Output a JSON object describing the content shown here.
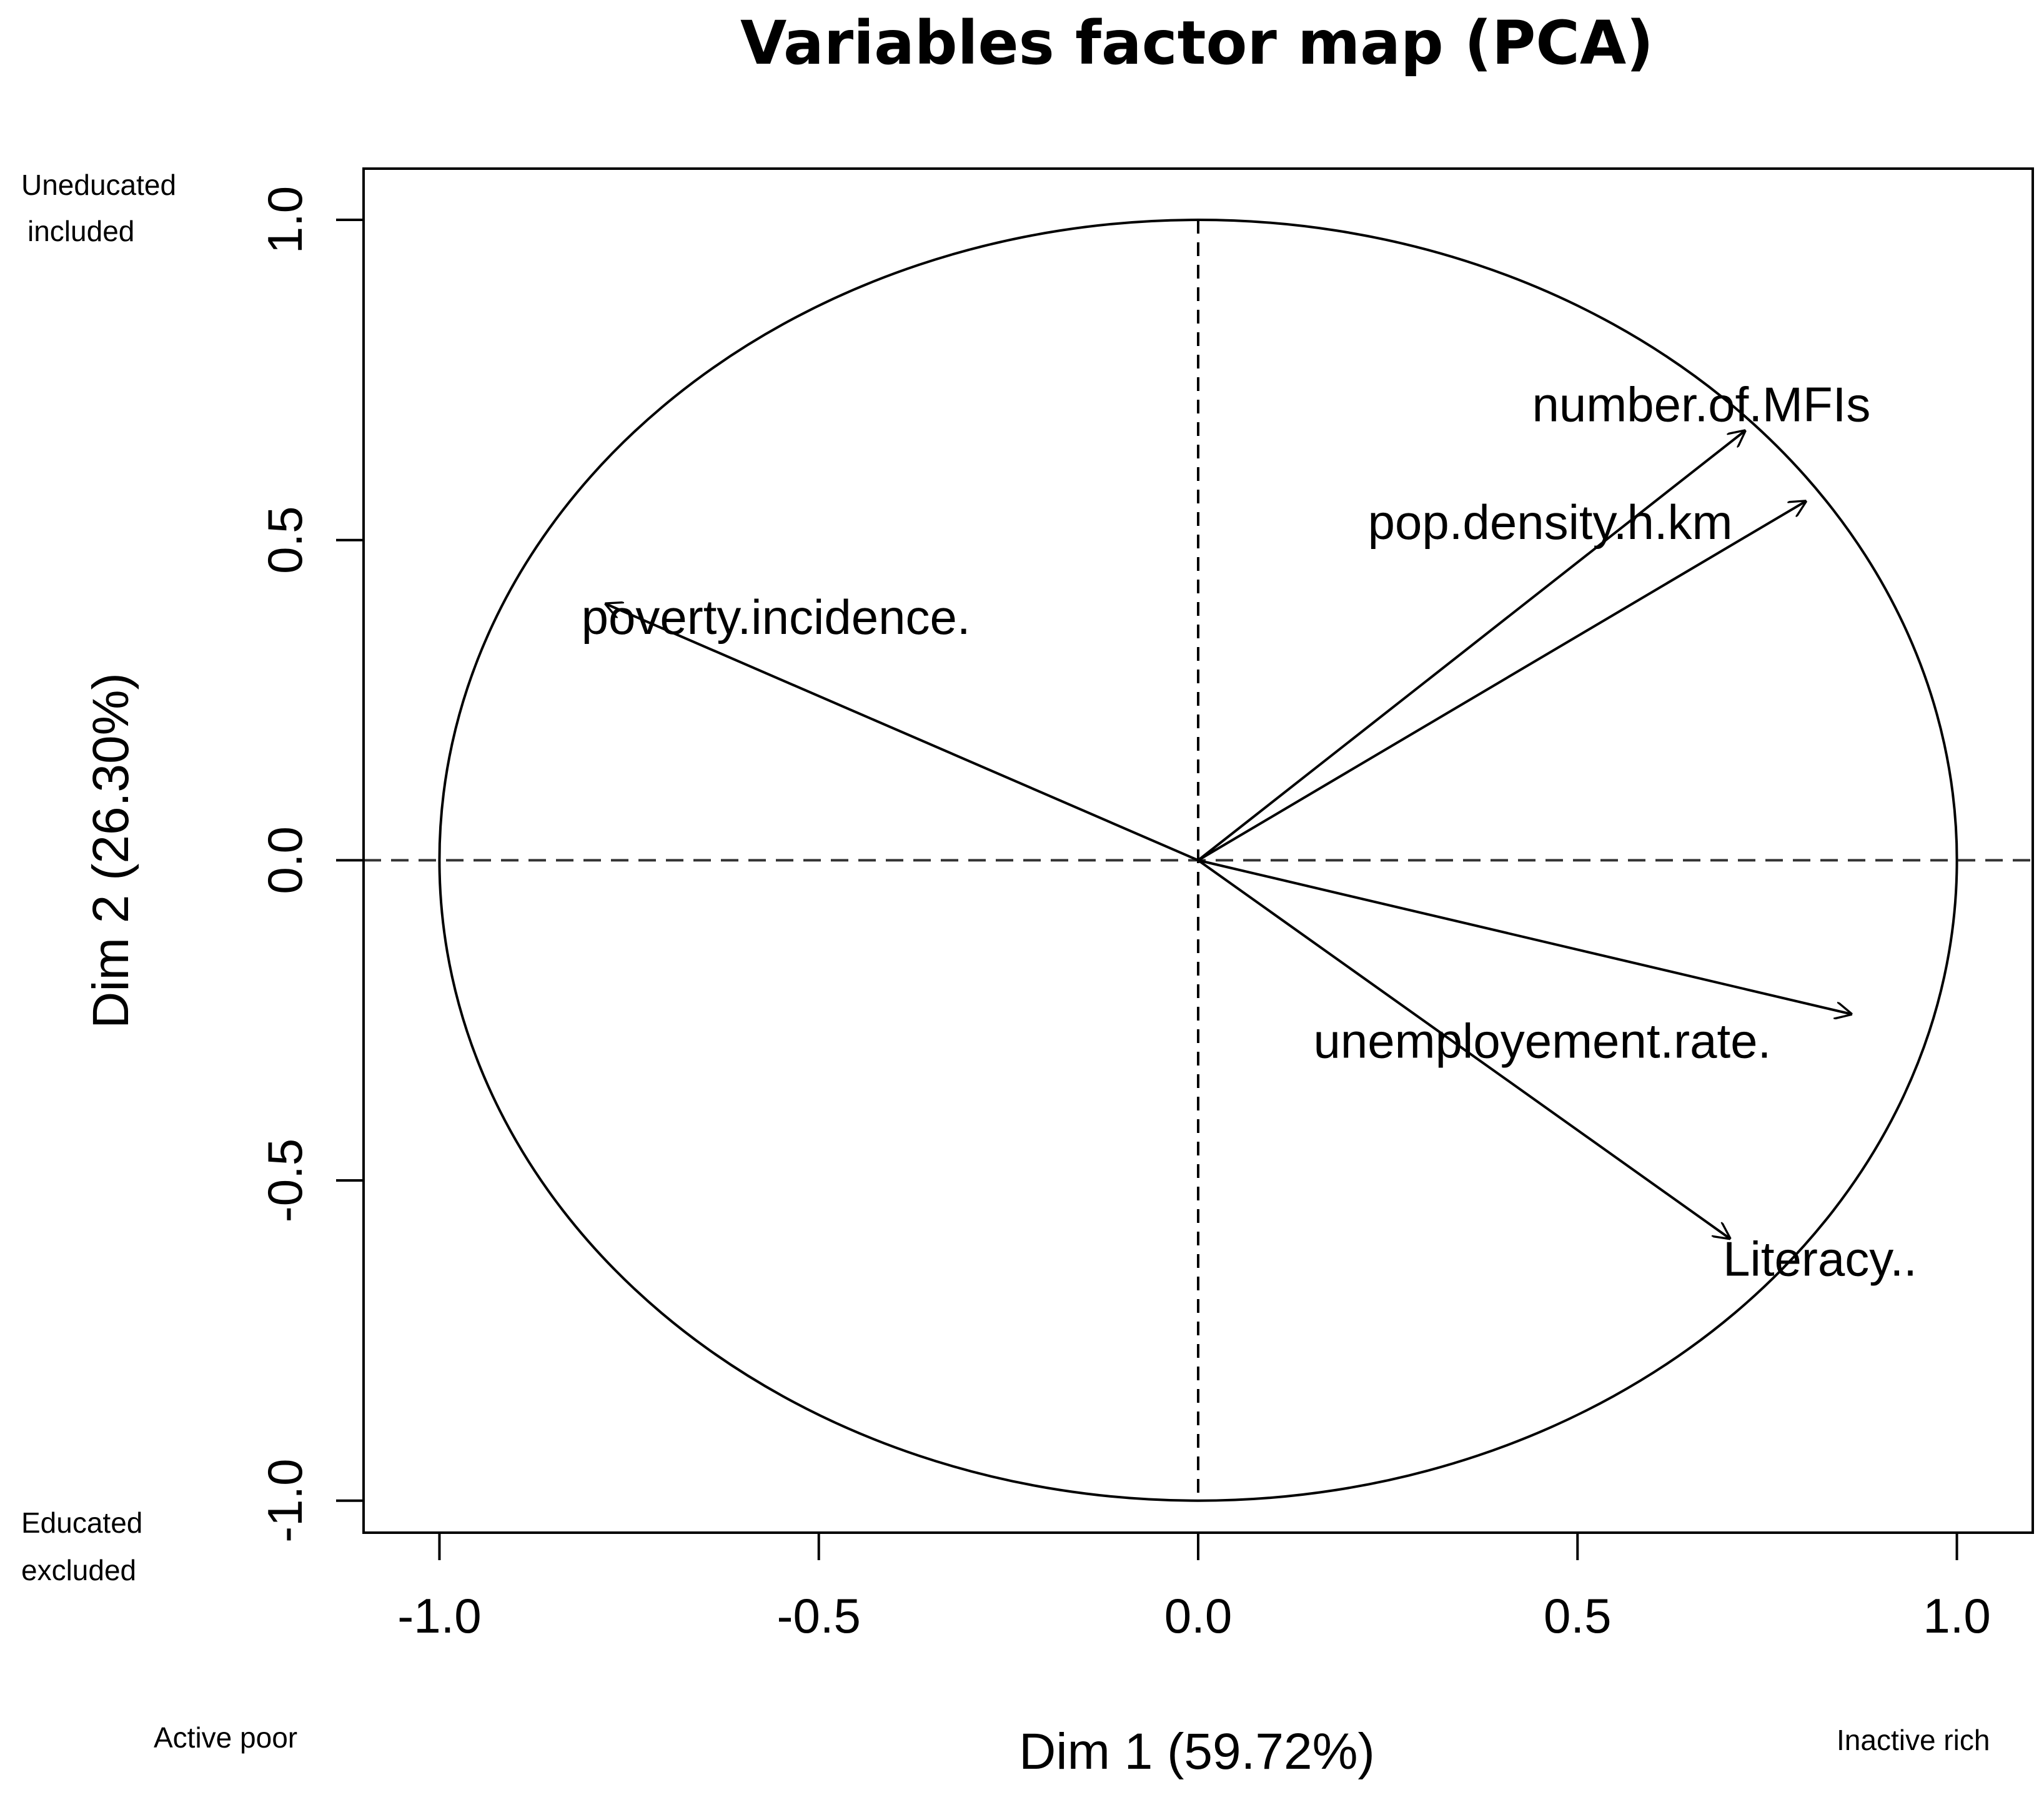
{
  "chart_data": {
    "type": "scatter",
    "title": "Variables factor map (PCA)",
    "xlabel": "Dim 1 (59.72%)",
    "ylabel": "Dim 2 (26.30%)",
    "xlim": [
      -1.1,
      1.1
    ],
    "ylim": [
      -1.05,
      1.08
    ],
    "xticks": [
      -1.0,
      -0.5,
      0.0,
      0.5,
      1.0
    ],
    "yticks": [
      -1.0,
      -0.5,
      0.0,
      0.5,
      1.0
    ],
    "xtick_labels": [
      "-1.0",
      "-0.5",
      "0.0",
      "0.5",
      "1.0"
    ],
    "ytick_labels": [
      "-1.0",
      "-0.5",
      "0.0",
      "0.5",
      "1.0"
    ],
    "unit_circle": true,
    "reference_lines": {
      "x": 0,
      "y": 0,
      "style": "dashed"
    },
    "variables": [
      {
        "name": "number.of.MFIs",
        "x": 0.72,
        "y": 0.67
      },
      {
        "name": "pop.density.h.km",
        "x": 0.8,
        "y": 0.56
      },
      {
        "name": "poverty.incidence.",
        "x": -0.78,
        "y": 0.4
      },
      {
        "name": "unemployement.rate.",
        "x": 0.86,
        "y": -0.24
      },
      {
        "name": "Literacy..",
        "x": 0.7,
        "y": -0.59
      }
    ],
    "annotations": {
      "top_left": [
        "Uneducated",
        "included"
      ],
      "bottom_left": [
        "Educated",
        "excluded"
      ],
      "bottom_left_x": "Active poor",
      "bottom_right_x": "Inactive rich"
    }
  }
}
